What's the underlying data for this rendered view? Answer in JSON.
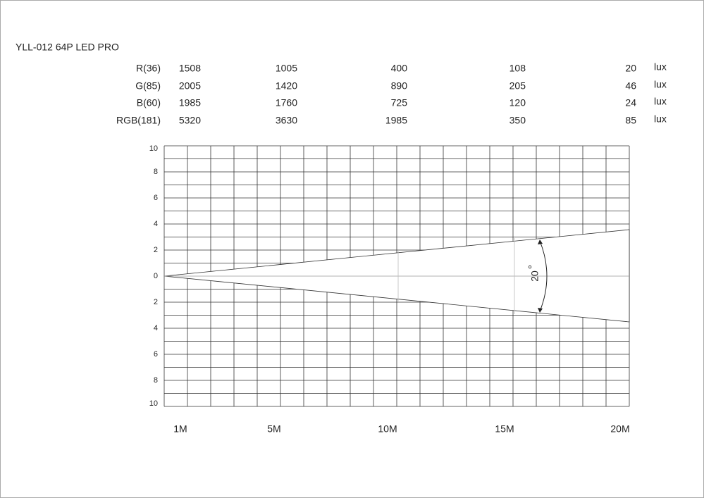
{
  "title": "YLL-012  64P LED PRO",
  "table": {
    "unit": "lux",
    "rows": [
      {
        "label": "R(36)",
        "values": [
          1508,
          1005,
          400,
          108,
          20
        ]
      },
      {
        "label": "G(85)",
        "values": [
          2005,
          1420,
          890,
          205,
          46
        ]
      },
      {
        "label": "B(60)",
        "values": [
          1985,
          1760,
          725,
          120,
          24
        ]
      },
      {
        "label": "RGB(181)",
        "values": [
          5320,
          3630,
          1985,
          350,
          85
        ]
      }
    ]
  },
  "diagram": {
    "y_labels": [
      10,
      8,
      6,
      4,
      2,
      0,
      2,
      4,
      6,
      8,
      10
    ],
    "x_labels": [
      "1M",
      "5M",
      "10M",
      "15M",
      "20M"
    ],
    "angle": {
      "value": 20,
      "label": "20"
    }
  }
}
